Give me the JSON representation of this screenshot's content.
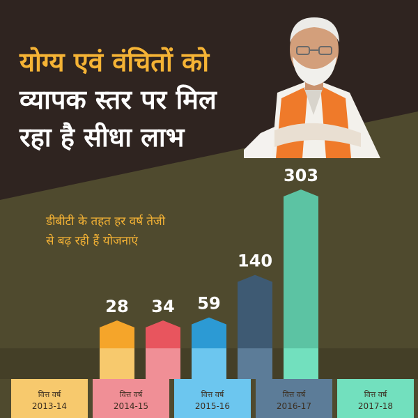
{
  "headline": {
    "line1": "योग्य एवं वंचितों को",
    "line2": "व्यापक स्तर पर मिल",
    "line3": "रहा है सीधा लाभ"
  },
  "subtitle": {
    "line1": "डीबीटी के तहत हर वर्ष तेजी",
    "line2": "से बढ़ रही हैं योजनाएं"
  },
  "colors": {
    "top_background": "#2f2420",
    "band_background": "#4f4a2e",
    "headline_accent": "#f5b335",
    "headline_text": "#ffffff",
    "subtitle_text": "#f5b335",
    "value_text": "#ffffff"
  },
  "chart_data": {
    "type": "bar",
    "categories": [
      "वित्त वर्ष 2013-14",
      "वित्त वर्ष 2014-15",
      "वित्त वर्ष 2015-16",
      "वित्त वर्ष 2016-17",
      "वित्त वर्ष 2017-18"
    ],
    "category_lines": [
      [
        "वित्त वर्ष",
        "2013-14"
      ],
      [
        "वित्त वर्ष",
        "2014-15"
      ],
      [
        "वित्त वर्ष",
        "2015-16"
      ],
      [
        "वित्त वर्ष",
        "2016-17"
      ],
      [
        "वित्त वर्ष",
        "2017-18"
      ]
    ],
    "values": [
      28,
      34,
      59,
      140,
      303
    ],
    "value_labels": [
      "28",
      "34",
      "59",
      "140",
      "303"
    ],
    "colors": [
      "#f5a52a",
      "#e8555e",
      "#2c9ad4",
      "#3e5a73",
      "#5cc3a3"
    ],
    "label_colors": [
      "#f7c96d",
      "#f08f96",
      "#6cc6ef",
      "#5c7c98",
      "#72e0be"
    ],
    "title": "",
    "xlabel": "",
    "ylabel": "",
    "data_labels": true,
    "grid": false,
    "legend": "none"
  }
}
